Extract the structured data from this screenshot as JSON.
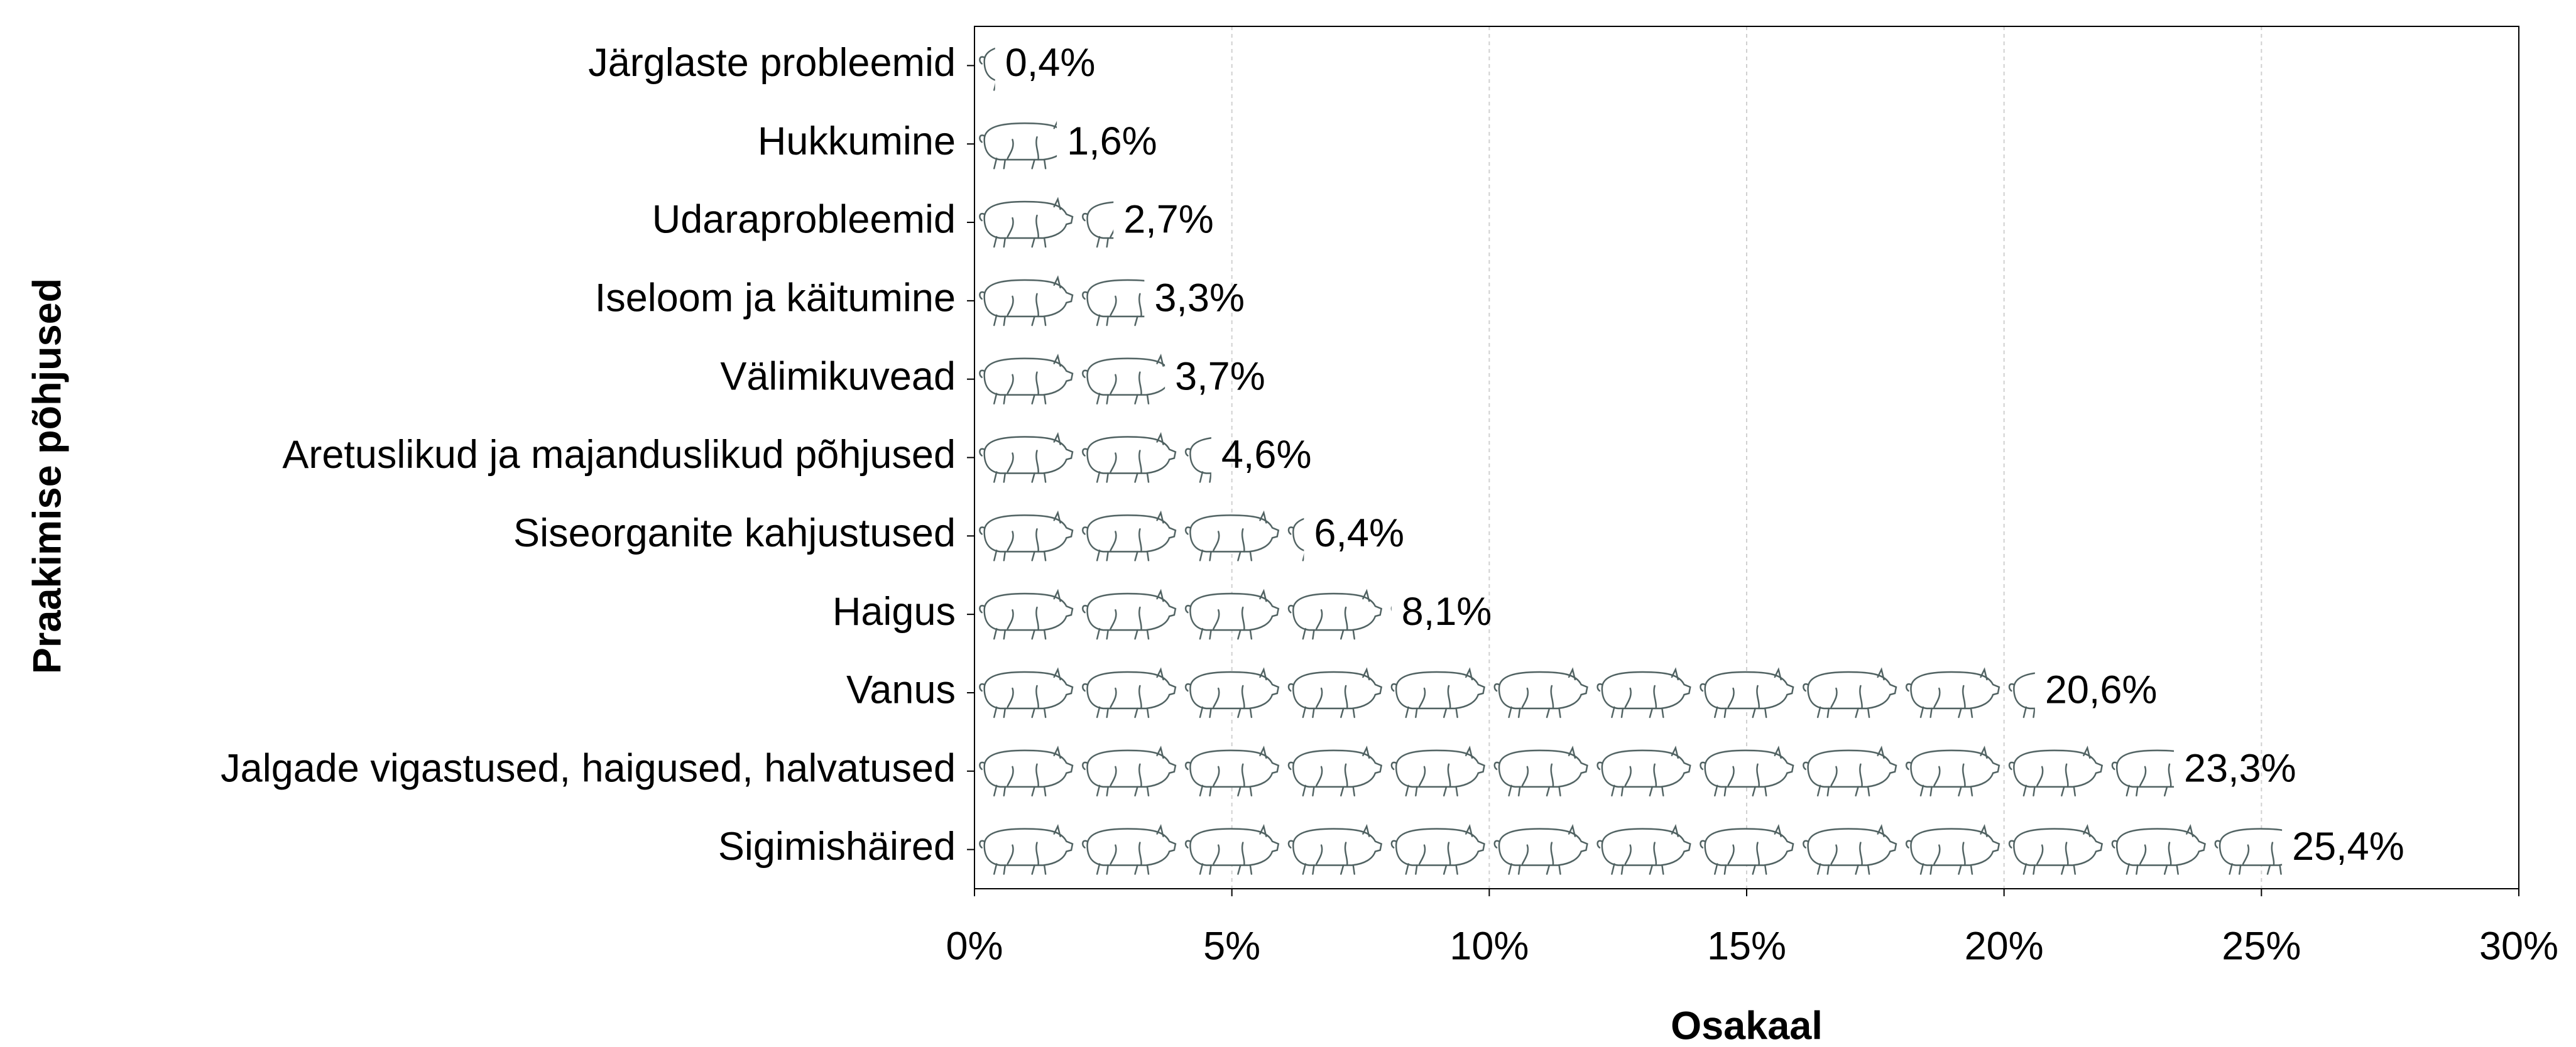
{
  "chart_data": {
    "type": "bar",
    "xlabel": "Osakaal",
    "ylabel": "Praakimise põhjused",
    "categories": [
      "Järglaste probleemid",
      "Hukkumine",
      "Udaraprobleemid",
      "Iseloom ja käitumine",
      "Välimikuvead",
      "Aretuslikud ja majanduslikud põhjused",
      "Siseorganite kahjustused",
      "Haigus",
      "Vanus",
      "Jalgade vigastused, haigused, halvatused",
      "Sigimishäired"
    ],
    "values": [
      0.4,
      1.6,
      2.7,
      3.3,
      3.7,
      4.6,
      6.4,
      8.1,
      20.6,
      23.3,
      25.4
    ],
    "value_labels": [
      "0,4%",
      "1,6%",
      "2,7%",
      "3,3%",
      "3,7%",
      "4,6%",
      "6,4%",
      "8,1%",
      "20,6%",
      "23,3%",
      "25,4%"
    ],
    "color": "#4d5f5f",
    "xlim": [
      0,
      30
    ],
    "xticks": [
      {
        "value": 0,
        "label": "0%"
      },
      {
        "value": 5,
        "label": "5%"
      },
      {
        "value": 10,
        "label": "10%"
      },
      {
        "value": 15,
        "label": "15%"
      },
      {
        "value": 20,
        "label": "20%"
      },
      {
        "value": 25,
        "label": "25%"
      },
      {
        "value": 30,
        "label": "30%"
      }
    ],
    "grid": true
  }
}
